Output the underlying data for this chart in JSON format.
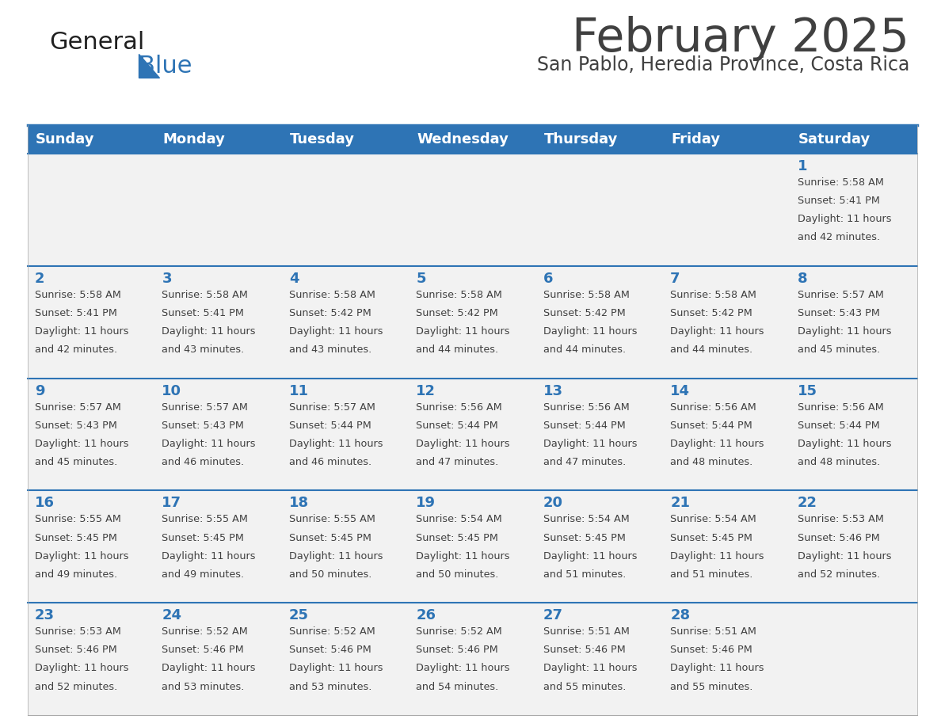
{
  "title": "February 2025",
  "subtitle": "San Pablo, Heredia Province, Costa Rica",
  "days_of_week": [
    "Sunday",
    "Monday",
    "Tuesday",
    "Wednesday",
    "Thursday",
    "Friday",
    "Saturday"
  ],
  "header_bg": "#2E74B5",
  "header_text": "#FFFFFF",
  "cell_bg_light": "#F2F2F2",
  "separator_color": "#2E74B5",
  "day_num_color": "#2E74B5",
  "info_text_color": "#404040",
  "title_color": "#404040",
  "subtitle_color": "#404040",
  "logo_general_color": "#202020",
  "logo_blue_color": "#2E74B5",
  "calendar": [
    [
      {
        "day": null,
        "sunrise": null,
        "sunset": null,
        "daylight": null
      },
      {
        "day": null,
        "sunrise": null,
        "sunset": null,
        "daylight": null
      },
      {
        "day": null,
        "sunrise": null,
        "sunset": null,
        "daylight": null
      },
      {
        "day": null,
        "sunrise": null,
        "sunset": null,
        "daylight": null
      },
      {
        "day": null,
        "sunrise": null,
        "sunset": null,
        "daylight": null
      },
      {
        "day": null,
        "sunrise": null,
        "sunset": null,
        "daylight": null
      },
      {
        "day": 1,
        "sunrise": "5:58 AM",
        "sunset": "5:41 PM",
        "daylight": "11 hours and 42 minutes."
      }
    ],
    [
      {
        "day": 2,
        "sunrise": "5:58 AM",
        "sunset": "5:41 PM",
        "daylight": "11 hours and 42 minutes."
      },
      {
        "day": 3,
        "sunrise": "5:58 AM",
        "sunset": "5:41 PM",
        "daylight": "11 hours and 43 minutes."
      },
      {
        "day": 4,
        "sunrise": "5:58 AM",
        "sunset": "5:42 PM",
        "daylight": "11 hours and 43 minutes."
      },
      {
        "day": 5,
        "sunrise": "5:58 AM",
        "sunset": "5:42 PM",
        "daylight": "11 hours and 44 minutes."
      },
      {
        "day": 6,
        "sunrise": "5:58 AM",
        "sunset": "5:42 PM",
        "daylight": "11 hours and 44 minutes."
      },
      {
        "day": 7,
        "sunrise": "5:58 AM",
        "sunset": "5:42 PM",
        "daylight": "11 hours and 44 minutes."
      },
      {
        "day": 8,
        "sunrise": "5:57 AM",
        "sunset": "5:43 PM",
        "daylight": "11 hours and 45 minutes."
      }
    ],
    [
      {
        "day": 9,
        "sunrise": "5:57 AM",
        "sunset": "5:43 PM",
        "daylight": "11 hours and 45 minutes."
      },
      {
        "day": 10,
        "sunrise": "5:57 AM",
        "sunset": "5:43 PM",
        "daylight": "11 hours and 46 minutes."
      },
      {
        "day": 11,
        "sunrise": "5:57 AM",
        "sunset": "5:44 PM",
        "daylight": "11 hours and 46 minutes."
      },
      {
        "day": 12,
        "sunrise": "5:56 AM",
        "sunset": "5:44 PM",
        "daylight": "11 hours and 47 minutes."
      },
      {
        "day": 13,
        "sunrise": "5:56 AM",
        "sunset": "5:44 PM",
        "daylight": "11 hours and 47 minutes."
      },
      {
        "day": 14,
        "sunrise": "5:56 AM",
        "sunset": "5:44 PM",
        "daylight": "11 hours and 48 minutes."
      },
      {
        "day": 15,
        "sunrise": "5:56 AM",
        "sunset": "5:44 PM",
        "daylight": "11 hours and 48 minutes."
      }
    ],
    [
      {
        "day": 16,
        "sunrise": "5:55 AM",
        "sunset": "5:45 PM",
        "daylight": "11 hours and 49 minutes."
      },
      {
        "day": 17,
        "sunrise": "5:55 AM",
        "sunset": "5:45 PM",
        "daylight": "11 hours and 49 minutes."
      },
      {
        "day": 18,
        "sunrise": "5:55 AM",
        "sunset": "5:45 PM",
        "daylight": "11 hours and 50 minutes."
      },
      {
        "day": 19,
        "sunrise": "5:54 AM",
        "sunset": "5:45 PM",
        "daylight": "11 hours and 50 minutes."
      },
      {
        "day": 20,
        "sunrise": "5:54 AM",
        "sunset": "5:45 PM",
        "daylight": "11 hours and 51 minutes."
      },
      {
        "day": 21,
        "sunrise": "5:54 AM",
        "sunset": "5:45 PM",
        "daylight": "11 hours and 51 minutes."
      },
      {
        "day": 22,
        "sunrise": "5:53 AM",
        "sunset": "5:46 PM",
        "daylight": "11 hours and 52 minutes."
      }
    ],
    [
      {
        "day": 23,
        "sunrise": "5:53 AM",
        "sunset": "5:46 PM",
        "daylight": "11 hours and 52 minutes."
      },
      {
        "day": 24,
        "sunrise": "5:52 AM",
        "sunset": "5:46 PM",
        "daylight": "11 hours and 53 minutes."
      },
      {
        "day": 25,
        "sunrise": "5:52 AM",
        "sunset": "5:46 PM",
        "daylight": "11 hours and 53 minutes."
      },
      {
        "day": 26,
        "sunrise": "5:52 AM",
        "sunset": "5:46 PM",
        "daylight": "11 hours and 54 minutes."
      },
      {
        "day": 27,
        "sunrise": "5:51 AM",
        "sunset": "5:46 PM",
        "daylight": "11 hours and 55 minutes."
      },
      {
        "day": 28,
        "sunrise": "5:51 AM",
        "sunset": "5:46 PM",
        "daylight": "11 hours and 55 minutes."
      },
      {
        "day": null,
        "sunrise": null,
        "sunset": null,
        "daylight": null
      }
    ]
  ]
}
